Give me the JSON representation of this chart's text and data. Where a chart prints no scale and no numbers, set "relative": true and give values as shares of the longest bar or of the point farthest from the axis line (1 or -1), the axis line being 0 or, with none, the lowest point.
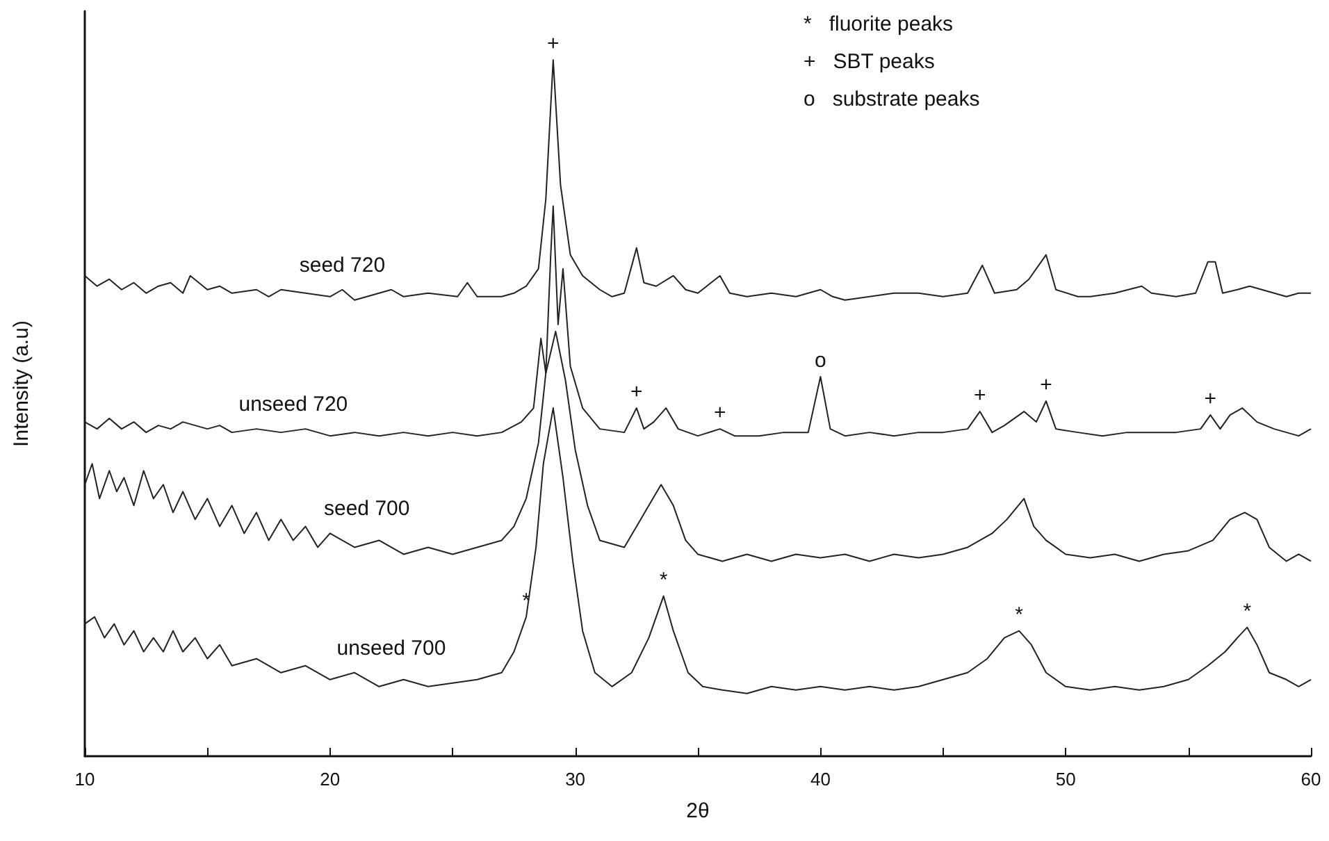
{
  "chart_data": {
    "type": "line",
    "relative": true,
    "xlabel": "2θ",
    "ylabel": "Intensity (a.u)",
    "xlim": [
      10,
      60
    ],
    "xticks": [
      10,
      {
        "value": 15,
        "label": null
      },
      20,
      {
        "value": 25,
        "label": null
      },
      30,
      {
        "value": 35,
        "label": null
      },
      40,
      {
        "value": 45,
        "label": null
      },
      50,
      {
        "value": 55,
        "label": null
      },
      60
    ],
    "grid": false,
    "legend": false,
    "marker": "none",
    "line_style": "solid",
    "series": [
      {
        "name": "seed 720",
        "color": "#222222",
        "x": [
          10,
          10.5,
          11,
          11.5,
          12,
          12.5,
          13,
          13.5,
          14,
          14.3,
          15,
          15.5,
          16,
          17,
          17.5,
          18,
          19,
          20,
          20.5,
          21,
          22,
          22.5,
          23,
          24,
          25.2,
          25.6,
          26,
          27,
          27.5,
          28,
          28.5,
          28.8,
          29.1,
          29.4,
          29.8,
          30.3,
          31,
          31.5,
          32,
          32.5,
          32.8,
          33.3,
          34,
          34.5,
          35,
          35.9,
          36.3,
          37,
          38,
          39,
          40,
          40.5,
          41,
          42,
          43,
          44,
          45,
          46,
          46.6,
          47.1,
          48,
          48.5,
          49.2,
          49.6,
          50.5,
          51,
          52,
          53.1,
          53.5,
          54.5,
          55.3,
          55.8,
          56.1,
          56.4,
          57,
          57.5,
          58,
          58.5,
          59,
          59.5,
          60
        ],
        "values": [
          0.69,
          0.675,
          0.685,
          0.67,
          0.68,
          0.665,
          0.675,
          0.68,
          0.665,
          0.69,
          0.67,
          0.675,
          0.665,
          0.67,
          0.66,
          0.67,
          0.665,
          0.66,
          0.67,
          0.655,
          0.665,
          0.67,
          0.66,
          0.665,
          0.66,
          0.68,
          0.66,
          0.66,
          0.665,
          0.675,
          0.7,
          0.8,
          1.0,
          0.82,
          0.72,
          0.69,
          0.67,
          0.66,
          0.665,
          0.73,
          0.68,
          0.675,
          0.69,
          0.67,
          0.665,
          0.69,
          0.665,
          0.66,
          0.665,
          0.66,
          0.67,
          0.66,
          0.655,
          0.66,
          0.665,
          0.665,
          0.66,
          0.665,
          0.705,
          0.665,
          0.67,
          0.685,
          0.72,
          0.67,
          0.66,
          0.66,
          0.665,
          0.675,
          0.665,
          0.66,
          0.665,
          0.71,
          0.71,
          0.665,
          0.67,
          0.675,
          0.67,
          0.665,
          0.66,
          0.665,
          0.665
        ]
      },
      {
        "name": "unseed 720",
        "color": "#222222",
        "x": [
          10,
          10.5,
          11,
          11.5,
          12,
          12.5,
          13,
          13.5,
          14,
          15,
          15.5,
          16,
          17,
          18,
          19,
          20,
          21,
          22,
          23,
          24,
          25,
          26,
          27,
          27.8,
          28.3,
          28.6,
          28.8,
          29.0,
          29.1,
          29.3,
          29.5,
          29.8,
          30.3,
          31,
          32,
          32.5,
          32.8,
          33.2,
          33.7,
          34.2,
          35,
          35.9,
          36.5,
          37.5,
          38.5,
          39.5,
          40,
          40.4,
          41,
          42,
          43,
          44,
          45,
          46,
          46.5,
          47,
          47.5,
          48.3,
          48.8,
          49.2,
          49.6,
          50.5,
          51.5,
          52.5,
          53.5,
          54.5,
          55.5,
          55.9,
          56.3,
          56.7,
          57.2,
          57.8,
          58.5,
          59,
          59.5,
          60
        ],
        "values": [
          0.48,
          0.47,
          0.485,
          0.47,
          0.48,
          0.465,
          0.475,
          0.47,
          0.48,
          0.47,
          0.475,
          0.465,
          0.47,
          0.465,
          0.47,
          0.46,
          0.465,
          0.46,
          0.465,
          0.46,
          0.465,
          0.46,
          0.465,
          0.48,
          0.5,
          0.6,
          0.55,
          0.72,
          0.79,
          0.62,
          0.7,
          0.56,
          0.5,
          0.47,
          0.465,
          0.5,
          0.47,
          0.48,
          0.5,
          0.47,
          0.46,
          0.47,
          0.46,
          0.46,
          0.465,
          0.465,
          0.545,
          0.47,
          0.46,
          0.465,
          0.46,
          0.465,
          0.465,
          0.47,
          0.495,
          0.465,
          0.475,
          0.495,
          0.48,
          0.51,
          0.47,
          0.465,
          0.46,
          0.465,
          0.465,
          0.465,
          0.47,
          0.49,
          0.47,
          0.49,
          0.5,
          0.48,
          0.47,
          0.465,
          0.46,
          0.47
        ]
      },
      {
        "name": "seed 700",
        "color": "#222222",
        "x": [
          10,
          10.3,
          10.6,
          11,
          11.3,
          11.6,
          12,
          12.4,
          12.8,
          13.2,
          13.6,
          14,
          14.5,
          15,
          15.5,
          16,
          16.5,
          17,
          17.5,
          18,
          18.5,
          19,
          19.5,
          20,
          21,
          22,
          23,
          24,
          25,
          26,
          27,
          27.5,
          28,
          28.5,
          28.8,
          29.2,
          29.6,
          30,
          30.5,
          31,
          32,
          32.5,
          33,
          33.5,
          34,
          34.5,
          35,
          36,
          37,
          38,
          39,
          40,
          41,
          42,
          43,
          44,
          45,
          46,
          47,
          47.6,
          48.3,
          48.7,
          49.2,
          50,
          51,
          52,
          53,
          54,
          55,
          56,
          56.7,
          57.3,
          57.8,
          58.3,
          59,
          59.5,
          60
        ],
        "values": [
          0.39,
          0.42,
          0.37,
          0.41,
          0.38,
          0.4,
          0.36,
          0.41,
          0.37,
          0.39,
          0.35,
          0.38,
          0.34,
          0.37,
          0.33,
          0.36,
          0.32,
          0.35,
          0.31,
          0.34,
          0.31,
          0.33,
          0.3,
          0.32,
          0.3,
          0.31,
          0.29,
          0.3,
          0.29,
          0.3,
          0.31,
          0.33,
          0.37,
          0.45,
          0.55,
          0.61,
          0.54,
          0.44,
          0.36,
          0.31,
          0.3,
          0.33,
          0.36,
          0.39,
          0.36,
          0.31,
          0.29,
          0.28,
          0.29,
          0.28,
          0.29,
          0.285,
          0.29,
          0.28,
          0.29,
          0.285,
          0.29,
          0.3,
          0.32,
          0.34,
          0.37,
          0.33,
          0.31,
          0.29,
          0.285,
          0.29,
          0.28,
          0.29,
          0.295,
          0.31,
          0.34,
          0.35,
          0.34,
          0.3,
          0.28,
          0.29,
          0.28
        ]
      },
      {
        "name": "unseed 700",
        "color": "#222222",
        "x": [
          10,
          10.4,
          10.8,
          11.2,
          11.6,
          12,
          12.4,
          12.8,
          13.2,
          13.6,
          14,
          14.5,
          15,
          15.5,
          16,
          17,
          18,
          19,
          20,
          21,
          22,
          23,
          24,
          25,
          26,
          27,
          27.5,
          28,
          28.4,
          28.7,
          29.1,
          29.5,
          29.9,
          30.3,
          30.8,
          31.5,
          32.3,
          33,
          33.6,
          34,
          34.6,
          35.2,
          36,
          37,
          38,
          39,
          40,
          41,
          42,
          43,
          44,
          45,
          46,
          46.8,
          47.5,
          48.1,
          48.6,
          49.2,
          50,
          51,
          52,
          53,
          54,
          55,
          55.8,
          56.5,
          57,
          57.4,
          57.8,
          58.3,
          59,
          59.5,
          60
        ],
        "values": [
          0.19,
          0.2,
          0.17,
          0.19,
          0.16,
          0.18,
          0.15,
          0.17,
          0.15,
          0.18,
          0.15,
          0.17,
          0.14,
          0.16,
          0.13,
          0.14,
          0.12,
          0.13,
          0.11,
          0.12,
          0.1,
          0.11,
          0.1,
          0.105,
          0.11,
          0.12,
          0.15,
          0.2,
          0.3,
          0.42,
          0.5,
          0.4,
          0.28,
          0.18,
          0.12,
          0.1,
          0.12,
          0.17,
          0.23,
          0.18,
          0.12,
          0.1,
          0.095,
          0.09,
          0.1,
          0.095,
          0.1,
          0.095,
          0.1,
          0.095,
          0.1,
          0.11,
          0.12,
          0.14,
          0.17,
          0.18,
          0.16,
          0.12,
          0.1,
          0.095,
          0.1,
          0.095,
          0.1,
          0.11,
          0.13,
          0.15,
          0.17,
          0.185,
          0.16,
          0.12,
          0.11,
          0.1,
          0.11
        ]
      }
    ],
    "annotations": [
      "*   fluorite peaks",
      "+   SBT peaks",
      "o   substrate peaks",
      {
        "text": "+",
        "x": 29.1,
        "y": 1.0
      },
      {
        "text": "+",
        "x": 32.5,
        "y": 0.5
      },
      {
        "text": "+",
        "x": 35.9,
        "y": 0.47
      },
      {
        "text": "o",
        "x": 40,
        "y": 0.545
      },
      {
        "text": "+",
        "x": 46.5,
        "y": 0.495
      },
      {
        "text": "+",
        "x": 49.2,
        "y": 0.51
      },
      {
        "text": "+",
        "x": 55.9,
        "y": 0.49
      },
      {
        "text": "*",
        "x": 28,
        "y": 0.2
      },
      {
        "text": "*",
        "x": 33.6,
        "y": 0.23
      },
      {
        "text": "*",
        "x": 48.1,
        "y": 0.18
      },
      {
        "text": "*",
        "x": 57.4,
        "y": 0.185
      }
    ]
  }
}
